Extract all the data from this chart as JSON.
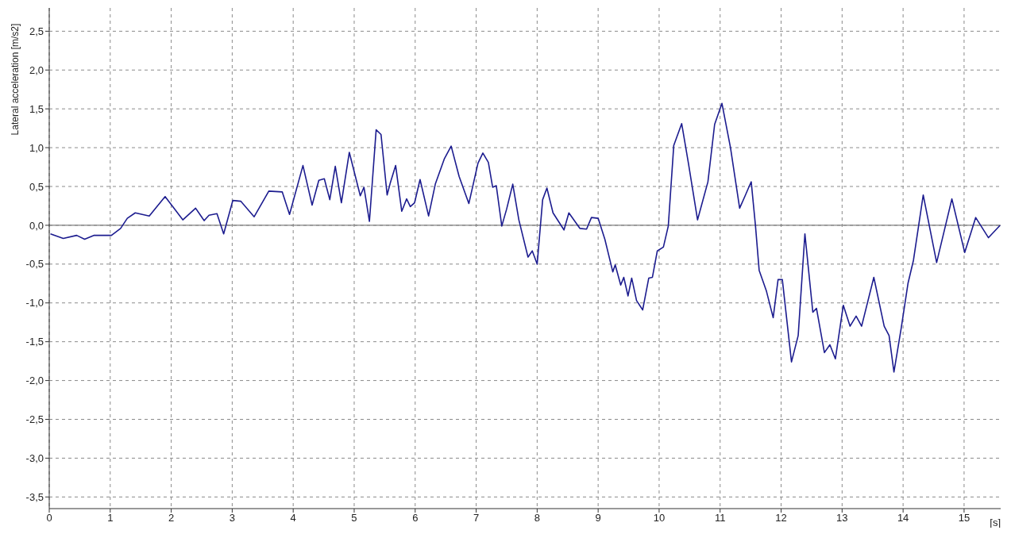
{
  "chart_data": {
    "type": "line",
    "xlabel": "[s]",
    "ylabel": "Lateral acceleration [m/s2]",
    "x": [
      0.02,
      0.23,
      0.45,
      0.58,
      0.73,
      1.02,
      1.17,
      1.28,
      1.41,
      1.64,
      1.9,
      2.19,
      2.4,
      2.54,
      2.62,
      2.75,
      2.86,
      3.01,
      3.14,
      3.36,
      3.6,
      3.82,
      3.94,
      4.16,
      4.31,
      4.42,
      4.51,
      4.6,
      4.69,
      4.79,
      4.92,
      5.1,
      5.16,
      5.25,
      5.36,
      5.44,
      5.54,
      5.59,
      5.68,
      5.78,
      5.86,
      5.92,
      5.99,
      6.08,
      6.22,
      6.33,
      6.48,
      6.59,
      6.72,
      6.88,
      7.03,
      7.11,
      7.2,
      7.27,
      7.33,
      7.42,
      7.5,
      7.6,
      7.7,
      7.85,
      7.92,
      8.0,
      8.09,
      8.16,
      8.26,
      8.44,
      8.52,
      8.7,
      8.81,
      8.89,
      9.0,
      9.11,
      9.24,
      9.28,
      9.37,
      9.42,
      9.49,
      9.55,
      9.63,
      9.73,
      9.83,
      9.89,
      9.97,
      10.07,
      10.15,
      10.24,
      10.37,
      10.48,
      10.63,
      10.8,
      10.91,
      11.03,
      11.17,
      11.32,
      11.41,
      11.47,
      11.51,
      11.58,
      11.64,
      11.76,
      11.87,
      11.95,
      12.02,
      12.17,
      12.28,
      12.39,
      12.52,
      12.58,
      12.71,
      12.8,
      12.89,
      13.02,
      13.13,
      13.23,
      13.32,
      13.52,
      13.69,
      13.77,
      13.85,
      13.97,
      14.08,
      14.17,
      14.33,
      14.55,
      14.8,
      15.01,
      15.19,
      15.4,
      15.59
    ],
    "series": [
      {
        "color": "#1c1c8f",
        "values": [
          -0.11,
          -0.17,
          -0.13,
          -0.18,
          -0.13,
          -0.13,
          -0.04,
          0.09,
          0.16,
          0.12,
          0.37,
          0.07,
          0.22,
          0.06,
          0.13,
          0.15,
          -0.11,
          0.32,
          0.31,
          0.11,
          0.44,
          0.43,
          0.14,
          0.77,
          0.26,
          0.58,
          0.6,
          0.33,
          0.76,
          0.29,
          0.94,
          0.38,
          0.49,
          0.05,
          1.23,
          1.17,
          0.39,
          0.54,
          0.77,
          0.18,
          0.34,
          0.24,
          0.29,
          0.59,
          0.12,
          0.53,
          0.86,
          1.02,
          0.63,
          0.28,
          0.8,
          0.93,
          0.81,
          0.49,
          0.51,
          -0.01,
          0.21,
          0.53,
          0.07,
          -0.41,
          -0.33,
          -0.5,
          0.33,
          0.48,
          0.16,
          -0.06,
          0.16,
          -0.04,
          -0.05,
          0.1,
          0.09,
          -0.18,
          -0.6,
          -0.51,
          -0.77,
          -0.67,
          -0.91,
          -0.68,
          -0.97,
          -1.09,
          -0.68,
          -0.67,
          -0.33,
          -0.28,
          -0.01,
          1.03,
          1.31,
          0.8,
          0.07,
          0.56,
          1.3,
          1.57,
          1.0,
          0.22,
          0.38,
          0.49,
          0.56,
          -0.01,
          -0.58,
          -0.85,
          -1.19,
          -0.7,
          -0.7,
          -1.76,
          -1.42,
          -0.11,
          -1.12,
          -1.07,
          -1.64,
          -1.54,
          -1.72,
          -1.03,
          -1.3,
          -1.17,
          -1.3,
          -0.67,
          -1.3,
          -1.42,
          -1.89,
          -1.32,
          -0.75,
          -0.45,
          0.39,
          -0.48,
          0.34,
          -0.35,
          0.1,
          -0.16,
          0.0
        ]
      }
    ],
    "xlim": [
      0,
      15.6
    ],
    "ylim": [
      -3.65,
      2.8
    ],
    "xticks": [
      0,
      1,
      2,
      3,
      4,
      5,
      6,
      7,
      8,
      9,
      10,
      11,
      12,
      13,
      14,
      15
    ],
    "yticks": [
      {
        "value": -3.5,
        "label": "-3,5"
      },
      {
        "value": -3,
        "label": "-3,0"
      },
      {
        "value": -2.5,
        "label": "-2,5"
      },
      {
        "value": -2,
        "label": "-2,0"
      },
      {
        "value": -1.5,
        "label": "-1,5"
      },
      {
        "value": -1,
        "label": "-1,0"
      },
      {
        "value": -0.5,
        "label": "-0,5"
      },
      {
        "value": 0,
        "label": "0,0"
      },
      {
        "value": 0.5,
        "label": "0,5"
      },
      {
        "value": 1,
        "label": "1,0"
      },
      {
        "value": 1.5,
        "label": "1,5"
      },
      {
        "value": 2,
        "label": "2,0"
      },
      {
        "value": 2.5,
        "label": "2,5"
      }
    ],
    "grid": true,
    "legend": false,
    "marker": "none",
    "line_style": "solid",
    "ref_lines": [
      {
        "axis": "y",
        "value": 0,
        "color": "#808080"
      }
    ]
  }
}
